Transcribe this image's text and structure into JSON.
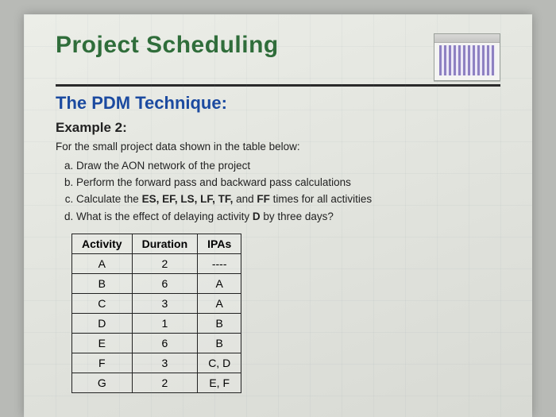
{
  "title": "Project Scheduling",
  "subtitle": "The PDM Technique:",
  "example_label": "Example 2:",
  "intro": "For the small project data shown in the table below:",
  "questions": {
    "a": "Draw the AON network of the project",
    "b": "Perform the forward pass and backward pass calculations",
    "c_prefix": "Calculate the ",
    "c_bold": "ES, EF, LS, LF, TF,",
    "c_mid": " and ",
    "c_bold2": "FF",
    "c_suffix": " times for all activities",
    "d_prefix": "What is the effect of delaying activity ",
    "d_bold": "D",
    "d_suffix": " by three days?"
  },
  "table": {
    "headers": {
      "activity": "Activity",
      "duration": "Duration",
      "ipas": "IPAs"
    },
    "rows": [
      {
        "activity": "A",
        "duration": "2",
        "ipas": "----"
      },
      {
        "activity": "B",
        "duration": "6",
        "ipas": "A"
      },
      {
        "activity": "C",
        "duration": "3",
        "ipas": "A"
      },
      {
        "activity": "D",
        "duration": "1",
        "ipas": "B"
      },
      {
        "activity": "E",
        "duration": "6",
        "ipas": "B"
      },
      {
        "activity": "F",
        "duration": "3",
        "ipas": "C, D"
      },
      {
        "activity": "G",
        "duration": "2",
        "ipas": "E, F"
      }
    ]
  },
  "colors": {
    "title": "#2f6d3a",
    "subtitle": "#1b4aa0",
    "rule": "#2a2a2a",
    "page_bg": "#e4e6e0",
    "outer_bg": "#b8bab6"
  }
}
